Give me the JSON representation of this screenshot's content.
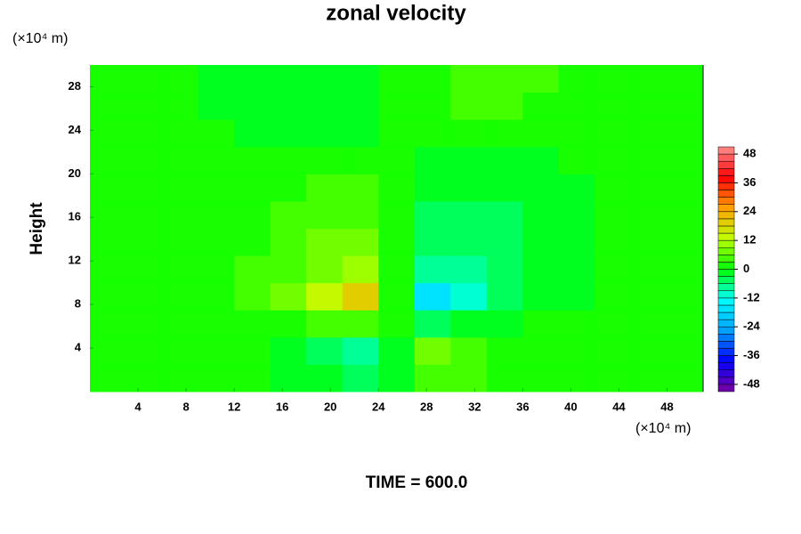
{
  "chart_data": {
    "type": "contour",
    "title": "zonal velocity",
    "ylabel": "Height",
    "x_unit": "(×10⁴ m)",
    "y_unit": "(×10⁴ m)",
    "footer": "TIME = 600.0",
    "xlim": [
      0,
      51
    ],
    "ylim": [
      0,
      30
    ],
    "xticks": [
      4,
      8,
      12,
      16,
      20,
      24,
      28,
      32,
      36,
      40,
      44,
      48
    ],
    "yticks": [
      4,
      8,
      12,
      16,
      20,
      24,
      28
    ],
    "x": [
      1.5,
      4.5,
      7.5,
      10.5,
      13.5,
      16.5,
      19.5,
      22.5,
      25.5,
      28.5,
      31.5,
      34.5,
      37.5,
      40.5,
      43.5,
      46.5,
      49.5
    ],
    "y": [
      1.25,
      3.75,
      6.25,
      8.75,
      11.25,
      13.75,
      16.25,
      18.75,
      21.25,
      23.75,
      26.25,
      28.75
    ],
    "z": [
      [
        0,
        0,
        0,
        0,
        0,
        -1,
        -3,
        -5,
        -1,
        4,
        3,
        1,
        0,
        0,
        0,
        0,
        0
      ],
      [
        0,
        0,
        0,
        0,
        0,
        -2,
        -5,
        -9,
        -2,
        8,
        5,
        2,
        0,
        0,
        0,
        0,
        0
      ],
      [
        0,
        0,
        0,
        0,
        1,
        2,
        5,
        4,
        0,
        -4,
        -3,
        -1,
        0,
        0,
        0,
        0,
        0
      ],
      [
        0,
        0,
        1,
        2,
        3,
        6,
        12,
        20,
        2,
        -18,
        -10,
        -5,
        -3,
        -1,
        0,
        0,
        0
      ],
      [
        0,
        0,
        1,
        2,
        3,
        5,
        8,
        9,
        1,
        -9,
        -7,
        -5,
        -3,
        -1,
        0,
        0,
        0
      ],
      [
        0,
        0,
        0,
        1,
        2,
        4,
        6,
        6,
        1,
        -6,
        -6,
        -5,
        -3,
        -1,
        0,
        0,
        0
      ],
      [
        0,
        0,
        0,
        1,
        2,
        3,
        4,
        4,
        1,
        -4,
        -5,
        -4,
        -3,
        -1,
        0,
        0,
        0
      ],
      [
        0,
        0,
        0,
        0,
        1,
        2,
        3,
        3,
        0,
        -3,
        -3,
        -3,
        -2,
        -1,
        0,
        0,
        0
      ],
      [
        0,
        0,
        0,
        0,
        0,
        0,
        1,
        1,
        0,
        -1,
        -1,
        -1,
        -1,
        0,
        0,
        0,
        0
      ],
      [
        0,
        0,
        0,
        0,
        -1,
        -1,
        -1,
        -1,
        0,
        1,
        1,
        1,
        1,
        0,
        0,
        0,
        0
      ],
      [
        0,
        0,
        0,
        -1,
        -2,
        -2,
        -2,
        -1,
        0,
        2,
        3,
        3,
        2,
        1,
        0,
        0,
        0
      ],
      [
        0,
        0,
        0,
        -1,
        -2,
        -2,
        -2,
        -2,
        0,
        2,
        3,
        3,
        3,
        2,
        0,
        0,
        0
      ]
    ],
    "clim": [
      -51,
      51
    ],
    "cticks": [
      48,
      36,
      24,
      12,
      0,
      -12,
      -24,
      -36,
      -48
    ],
    "colormap": [
      "#7a00a0",
      "#0000ff",
      "#00a0ff",
      "#00ffff",
      "#00ff00",
      "#c0ff00",
      "#ffa000",
      "#ff0000",
      "#ff9090"
    ]
  }
}
